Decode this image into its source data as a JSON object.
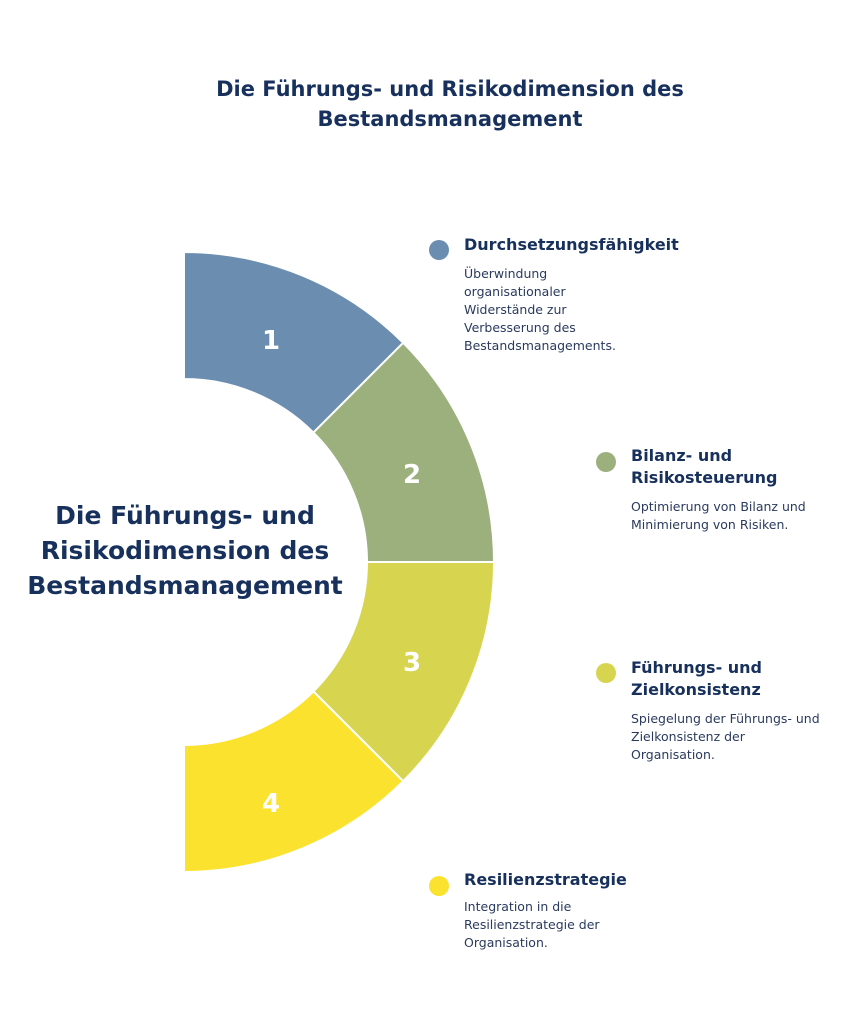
{
  "title": "Die Führungs- und Risikodimension des Bestandsmanagement",
  "center_title": "Die Führungs- und Risikodimension des Bestandsmanagement",
  "segments": [
    {
      "number": "1",
      "color": "#6b8db0"
    },
    {
      "number": "2",
      "color": "#9cb07d"
    },
    {
      "number": "3",
      "color": "#d7d54f"
    },
    {
      "number": "4",
      "color": "#fbe22e"
    }
  ],
  "items": [
    {
      "heading": "Durchsetzungsfähigkeit",
      "description": "Überwindung organisationaler Widerstände zur Verbesserung des Bestandsmanagements.",
      "color": "#6b8db0"
    },
    {
      "heading": "Bilanz- und Risikosteuerung",
      "description": "Optimierung von Bilanz und Minimierung von Risiken.",
      "color": "#9cb07d"
    },
    {
      "heading": "Führungs- und Zielkonsistenz",
      "description": "Spiegelung der Führungs- und Zielkonsistenz der Organisation.",
      "color": "#d7d54f"
    },
    {
      "heading": "Resilienzstrategie",
      "description": "Integration in die Resilienzstrategie der Organisation.",
      "color": "#fbe22e"
    }
  ]
}
